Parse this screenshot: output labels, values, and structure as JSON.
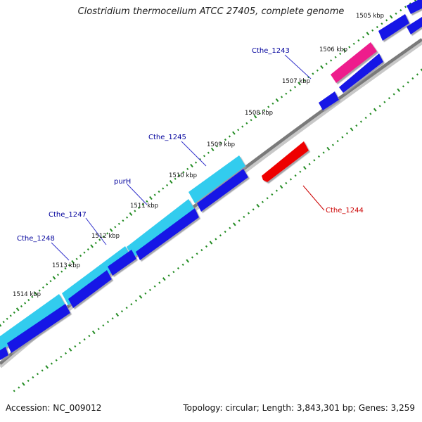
{
  "title": "Clostridium thermocellum ATCC 27405, complete genome",
  "footer": {
    "accession": "Accession: NC_009012",
    "summary": "Topology: circular; Length: 3,843,301 bp; Genes: 3,259"
  },
  "colors": {
    "backbone": "#808080",
    "tick": "#228b22",
    "forward_cds": "#33ccee",
    "reverse_cds": "#0000e0",
    "highlight_pink": "#ee1a8c",
    "highlight_red": "#ee0000",
    "label_blue": "#00009c",
    "label_red": "#cc0000"
  },
  "scale_labels": [
    {
      "text": "1505 kbp",
      "kbp": 1505
    },
    {
      "text": "1506 kbp",
      "kbp": 1506
    },
    {
      "text": "1507 kbp",
      "kbp": 1507
    },
    {
      "text": "1508 kbp",
      "kbp": 1508
    },
    {
      "text": "1509 kbp",
      "kbp": 1509
    },
    {
      "text": "1510 kbp",
      "kbp": 1510
    },
    {
      "text": "1511 kbp",
      "kbp": 1511
    },
    {
      "text": "1512 kbp",
      "kbp": 1512
    },
    {
      "text": "1513 kbp",
      "kbp": 1513
    },
    {
      "text": "1514 kbp",
      "kbp": 1514
    }
  ],
  "labeled_genes": [
    {
      "name": "Cthe_1243",
      "color": "#00009c"
    },
    {
      "name": "Cthe_1245",
      "color": "#00009c"
    },
    {
      "name": "purH",
      "color": "#00009c"
    },
    {
      "name": "Cthe_1247",
      "color": "#00009c"
    },
    {
      "name": "Cthe_1248",
      "color": "#00009c"
    },
    {
      "name": "Cthe_1244",
      "color": "#cc0000"
    }
  ]
}
